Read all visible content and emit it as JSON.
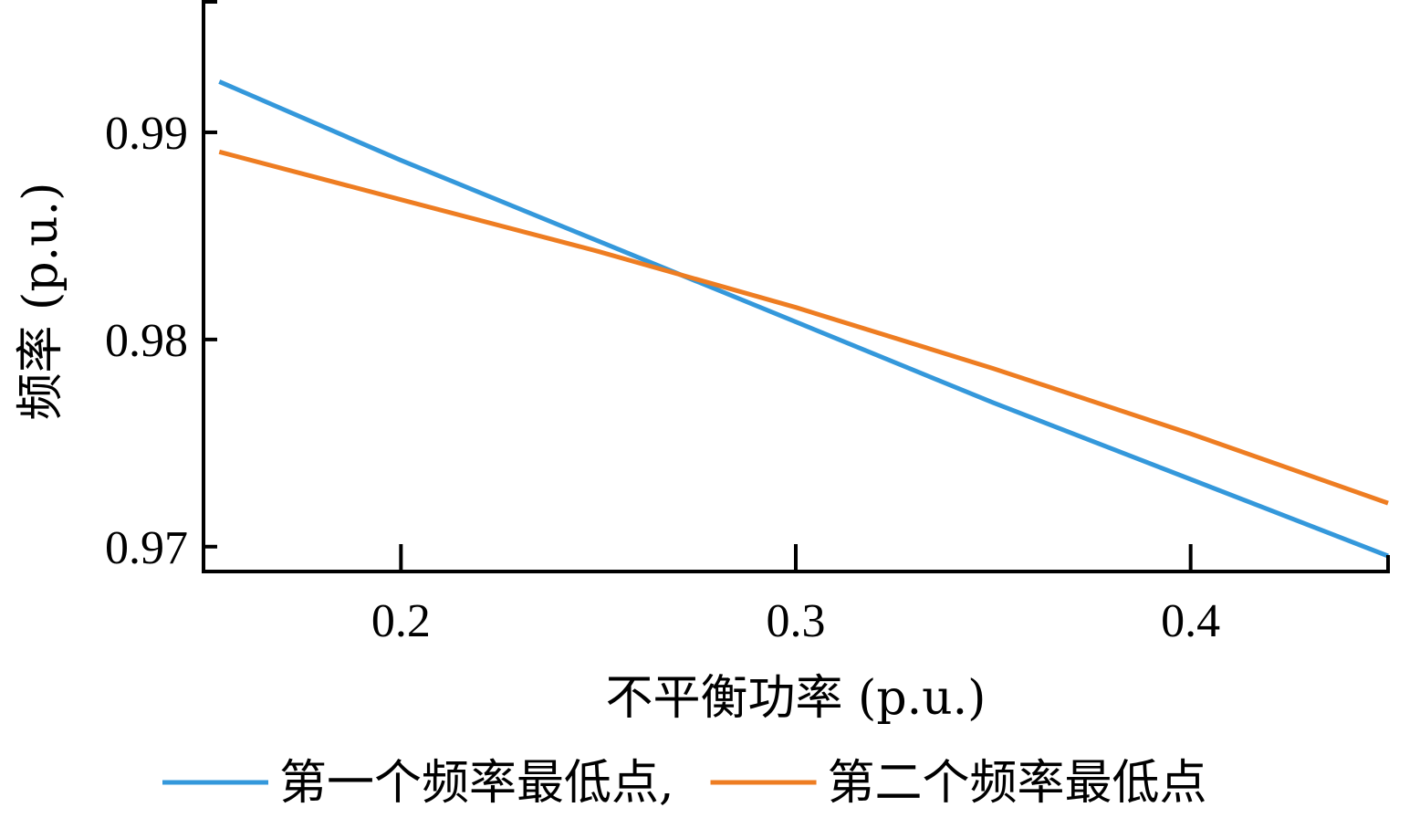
{
  "chart_data": {
    "type": "line",
    "xlabel": "不平衡功率 (p.u.)",
    "ylabel": "频率 (p.u.)",
    "xlim": [
      0.15,
      0.45
    ],
    "ylim": [
      0.9688,
      0.9963
    ],
    "xticks": [
      0.2,
      0.3,
      0.4
    ],
    "xtick_labels": [
      "0.2",
      "0.3",
      "0.4"
    ],
    "yticks": [
      0.97,
      0.98,
      0.99
    ],
    "ytick_labels": [
      "0.97",
      "0.98",
      "0.99"
    ],
    "grid": false,
    "legend_position": "bottom",
    "series": [
      {
        "name": "第一个频率最低点,",
        "color": "#3498DB",
        "x": [
          0.154,
          0.2,
          0.25,
          0.3,
          0.35,
          0.4,
          0.45
        ],
        "y": [
          0.99245,
          0.98865,
          0.98475,
          0.98085,
          0.97695,
          0.97325,
          0.96955
        ]
      },
      {
        "name": "第二个频率最低点",
        "color": "#EE7D22",
        "x": [
          0.154,
          0.2,
          0.25,
          0.3,
          0.35,
          0.4,
          0.45
        ],
        "y": [
          0.98906,
          0.98675,
          0.98425,
          0.98155,
          0.9786,
          0.97545,
          0.9721
        ]
      }
    ]
  }
}
